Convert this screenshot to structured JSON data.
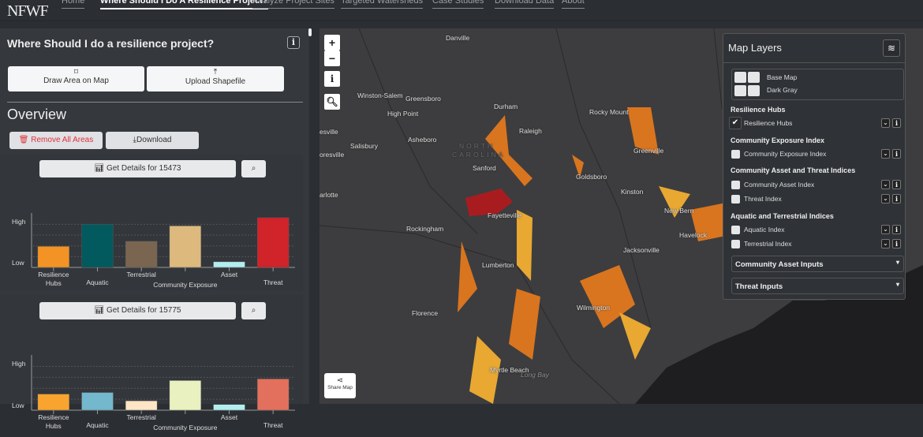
{
  "nav": {
    "logo": "NFWF",
    "items": [
      {
        "label": "Home",
        "active": false
      },
      {
        "label": "Where Should I Do A Resilience Project?",
        "active": true
      },
      {
        "label": "Analyze Project Sites",
        "active": false
      },
      {
        "label": "Targeted Watersheds",
        "active": false
      },
      {
        "label": "Case Studies",
        "active": false
      },
      {
        "label": "Download Data",
        "active": false
      },
      {
        "label": "About",
        "active": false
      }
    ]
  },
  "left": {
    "title": "Where Should I do a resilience project?",
    "info": "i",
    "draw_label": "Draw Area on Map",
    "upload_label": "Upload Shapefile",
    "overview": "Overview",
    "remove_label": "Remove All Areas",
    "download_label": "Download"
  },
  "chart_data": [
    {
      "type": "bar",
      "button": "Get Details for 15473",
      "ylabels": [
        "High",
        "Low"
      ],
      "categories": [
        "Resilience Hubs",
        "Aquatic",
        "Terrestrial",
        "Community Exposure",
        "Asset",
        "Threat"
      ],
      "values": [
        0.41,
        0.84,
        0.51,
        0.81,
        0.11,
        0.97
      ],
      "colors": [
        "#f39325",
        "#035a5e",
        "#7a6650",
        "#ddb97e",
        "#b2eef0",
        "#d0232a"
      ],
      "ylim": [
        0,
        1
      ],
      "grid": true
    },
    {
      "type": "bar",
      "button": "Get Details for 15775",
      "ylabels": [
        "High",
        "Low"
      ],
      "categories": [
        "Resilience Hubs",
        "Aquatic",
        "Terrestrial",
        "Community Exposure",
        "Asset",
        "Threat"
      ],
      "values": [
        0.31,
        0.34,
        0.18,
        0.57,
        0.11,
        0.6
      ],
      "colors": [
        "#f8a42f",
        "#73b8cc",
        "#fde5c5",
        "#e8f1bf",
        "#b2eef0",
        "#e2705d"
      ],
      "ylim": [
        0,
        1
      ],
      "grid": true
    }
  ],
  "map": {
    "labels": [
      "Danville",
      "Winston-Salem",
      "Greensboro",
      "Durham",
      "Rocky Mount",
      "High Point",
      "Raleigh",
      "Asheboro",
      "Salisbury",
      "NORTH",
      "CAROLINA",
      "Sanford",
      "Greenville",
      "Goldsboro",
      "Kinston",
      "arlotte",
      "Fayetteville",
      "New Bern",
      "Havelock",
      "Rockingham",
      "Lumberton",
      "Jacksonville",
      "Florence",
      "Wilmington",
      "Myrtle Beach",
      "Long Bay",
      "esville",
      "oresville"
    ],
    "share_label": "Share Map",
    "zoom_in": "+",
    "zoom_out": "−",
    "info": "i"
  },
  "layers": {
    "title": "Map Layers",
    "basemap_title": "Base Map",
    "basemap_value": "Dark Gray",
    "groups": [
      {
        "title": "Resilience Hubs",
        "items": [
          {
            "label": "Resilience Hubs",
            "checked": true
          }
        ]
      },
      {
        "title": "Community Exposure Index",
        "items": [
          {
            "label": "Community Exposure Index",
            "checked": false
          }
        ]
      },
      {
        "title": "Community Asset and Threat Indices",
        "items": [
          {
            "label": "Community Asset Index",
            "checked": false
          },
          {
            "label": "Threat Index",
            "checked": false
          }
        ]
      },
      {
        "title": "Aquatic and Terrestrial Indices",
        "items": [
          {
            "label": "Aquatic Index",
            "checked": false
          },
          {
            "label": "Terrestrial Index",
            "checked": false
          }
        ]
      }
    ],
    "dropdowns": [
      "Community Asset Inputs",
      "Threat Inputs"
    ]
  }
}
